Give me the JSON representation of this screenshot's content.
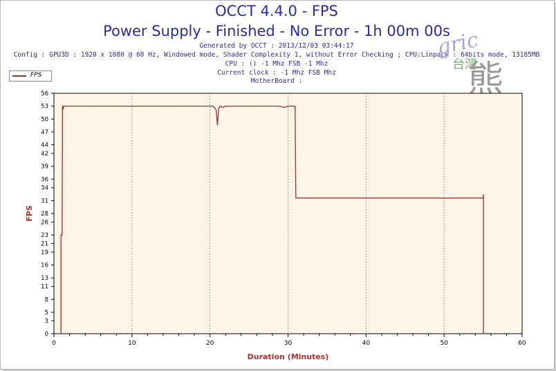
{
  "title": "OCCT 4.4.0 - FPS",
  "subtitle": "Power Supply - Finished - No Error - 1h 00m 00s",
  "info_lines": [
    "Generated by OCCT : 2013/12/03 03:44:17",
    "Config : GPU3D : 1920 x 1080 @ 60 Hz, Windowed mode, Shader Complexity 1, without Error Checking ; CPU:Linpack : 64bits mode, 13185MB",
    "CPU :  () -1 Mhz FSB -1 Mhz",
    "Current clock : -1 Mhz FSB  Mhz",
    "MotherBoard :"
  ],
  "watermark": {
    "latin": "gric",
    "han_small": "台灣",
    "han_big": "熊"
  },
  "colors": {
    "series": "#a52a2a",
    "plot_bg": "#fdf5e6",
    "axis_label": "#b03030",
    "title": "#2a2aa8"
  },
  "chart_data": {
    "type": "line",
    "xlabel": "Duration (Minutes)",
    "ylabel": "FPS",
    "xlim": [
      0,
      60
    ],
    "ylim": [
      0,
      56
    ],
    "xticks": [
      0,
      10,
      20,
      30,
      40,
      50,
      60
    ],
    "yticks": [
      0,
      3,
      5,
      8,
      11,
      13,
      16,
      19,
      21,
      23,
      26,
      28,
      31,
      34,
      36,
      39,
      42,
      44,
      47,
      50,
      53,
      56
    ],
    "grid": "vertical dotted",
    "legend": "top-left",
    "series": [
      {
        "name": "FPS",
        "points": [
          [
            0.9,
            0
          ],
          [
            0.9,
            23
          ],
          [
            1.05,
            23
          ],
          [
            1.1,
            53
          ],
          [
            1.2,
            52.5
          ],
          [
            1.25,
            53
          ],
          [
            5,
            53
          ],
          [
            10,
            53
          ],
          [
            15,
            53
          ],
          [
            20.4,
            53
          ],
          [
            20.6,
            52.6
          ],
          [
            20.8,
            52
          ],
          [
            20.95,
            48.6
          ],
          [
            21.1,
            52.4
          ],
          [
            21.3,
            53
          ],
          [
            21.6,
            52.7
          ],
          [
            22,
            53
          ],
          [
            25,
            53
          ],
          [
            29,
            53
          ],
          [
            29.5,
            52.7
          ],
          [
            30,
            53
          ],
          [
            30.9,
            53
          ],
          [
            31.0,
            31.6
          ],
          [
            55.0,
            31.6
          ],
          [
            55.05,
            32.4
          ],
          [
            55.05,
            0
          ]
        ]
      }
    ]
  }
}
